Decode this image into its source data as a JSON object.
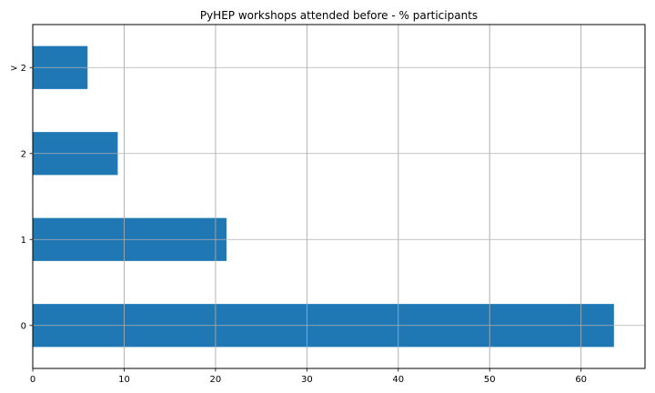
{
  "chart_data": {
    "type": "bar",
    "orientation": "horizontal",
    "title": "PyHEP workshops attended before - % participants",
    "xlabel": "",
    "ylabel": "",
    "categories": [
      "0",
      "1",
      "2",
      "> 2"
    ],
    "values": [
      63.6,
      21.2,
      9.3,
      6.0
    ],
    "xlim": [
      0,
      67
    ],
    "xticks": [
      0,
      10,
      20,
      30,
      40,
      50,
      60
    ],
    "grid": true,
    "bar_color": "#1f77b4",
    "grid_color": "#b0b0b0"
  }
}
